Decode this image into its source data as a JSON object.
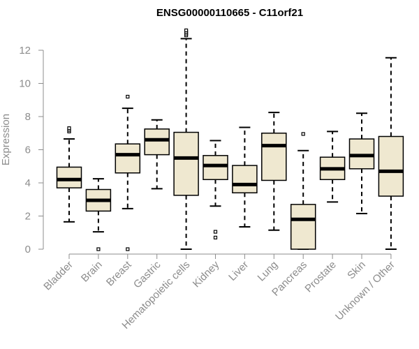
{
  "chart_data": {
    "type": "boxplot",
    "title": "ENSG00000110665 - C11orf21",
    "xlabel": "",
    "ylabel": "Expression",
    "ylim": [
      0,
      13.2
    ],
    "yticks": [
      0,
      2,
      4,
      6,
      8,
      10,
      12
    ],
    "grid": false,
    "colors": {
      "box_fill": "#efe8d0",
      "stroke": "#000000",
      "axis": "#8c8c8c"
    },
    "categories": [
      "Bladder",
      "Brain",
      "Breast",
      "Gastric",
      "Hematopoietic cells",
      "Kidney",
      "Liver",
      "Lung",
      "Pancreas",
      "Prostate",
      "Skin",
      "Unknown / Other"
    ],
    "boxes": [
      {
        "whisker_low": 1.65,
        "q1": 3.7,
        "median": 4.2,
        "q3": 4.95,
        "whisker_high": 6.65,
        "outliers": [
          7.1,
          7.2,
          7.3
        ]
      },
      {
        "whisker_low": 1.05,
        "q1": 2.3,
        "median": 2.95,
        "q3": 3.6,
        "whisker_high": 4.25,
        "outliers": [
          0.0
        ]
      },
      {
        "whisker_low": 2.45,
        "q1": 4.6,
        "median": 5.7,
        "q3": 6.35,
        "whisker_high": 8.5,
        "outliers": [
          0.0,
          9.2
        ]
      },
      {
        "whisker_low": 3.65,
        "q1": 5.7,
        "median": 6.6,
        "q3": 7.25,
        "whisker_high": 7.8,
        "outliers": []
      },
      {
        "whisker_low": 0.0,
        "q1": 3.25,
        "median": 5.5,
        "q3": 7.05,
        "whisker_high": 12.7,
        "outliers": [
          12.9,
          13.0,
          13.1,
          13.2
        ]
      },
      {
        "whisker_low": 2.6,
        "q1": 4.2,
        "median": 5.05,
        "q3": 5.65,
        "whisker_high": 6.55,
        "outliers": [
          0.7,
          1.05
        ]
      },
      {
        "whisker_low": 1.35,
        "q1": 3.4,
        "median": 3.9,
        "q3": 5.05,
        "whisker_high": 7.35,
        "outliers": []
      },
      {
        "whisker_low": 1.15,
        "q1": 4.15,
        "median": 6.25,
        "q3": 7.0,
        "whisker_high": 8.25,
        "outliers": []
      },
      {
        "whisker_low": 0.0,
        "q1": 0.0,
        "median": 1.8,
        "q3": 2.7,
        "whisker_high": 5.95,
        "outliers": [
          6.95
        ]
      },
      {
        "whisker_low": 2.85,
        "q1": 4.2,
        "median": 4.85,
        "q3": 5.55,
        "whisker_high": 7.1,
        "outliers": []
      },
      {
        "whisker_low": 2.15,
        "q1": 4.85,
        "median": 5.65,
        "q3": 6.65,
        "whisker_high": 8.2,
        "outliers": []
      },
      {
        "whisker_low": 0.0,
        "q1": 3.2,
        "median": 4.7,
        "q3": 6.8,
        "whisker_high": 11.55,
        "outliers": []
      }
    ]
  }
}
